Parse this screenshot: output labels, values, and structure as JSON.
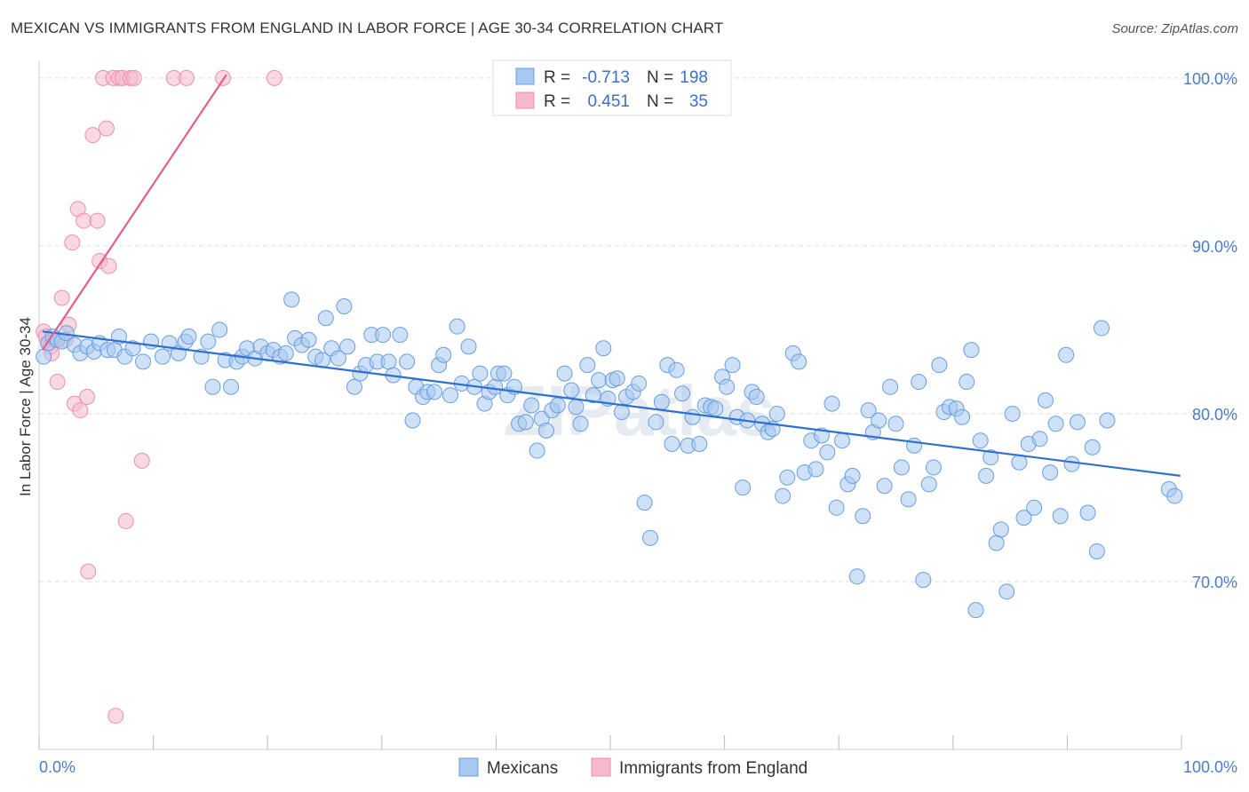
{
  "title": "MEXICAN VS IMMIGRANTS FROM ENGLAND IN LABOR FORCE | AGE 30-34 CORRELATION CHART",
  "source": "Source: ZipAtlas.com",
  "watermark": "ZIPatlas",
  "colors": {
    "blue_fill": "#a8c8f0",
    "blue_stroke": "#6a9ee0",
    "blue_line": "#2f6fd0",
    "pink_fill": "#f6b8cb",
    "pink_stroke": "#ee8fae",
    "pink_line": "#e0608a",
    "tick_label": "#4a7ccb",
    "grid": "#dddddd"
  },
  "legend": {
    "rows": [
      {
        "r_label": "R =",
        "r_value": "-0.713",
        "n_label": "N =",
        "n_value": "198"
      },
      {
        "r_label": "R =",
        "r_value": "0.451",
        "n_label": "N =",
        "n_value": "35"
      }
    ]
  },
  "chart_data": {
    "type": "scatter",
    "title": "MEXICAN VS IMMIGRANTS FROM ENGLAND IN LABOR FORCE | AGE 30-34 CORRELATION CHART",
    "xlabel": "",
    "ylabel": "In Labor Force | Age 30-34",
    "xlim": [
      0,
      100
    ],
    "ylim": [
      60,
      101
    ],
    "x_tick_labels": [
      "0.0%",
      "100.0%"
    ],
    "y_ticks": [
      70,
      80,
      90,
      100
    ],
    "y_tick_labels": [
      "70.0%",
      "80.0%",
      "90.0%",
      "100.0%"
    ],
    "grid": true,
    "legend_position": "top-center",
    "series": [
      {
        "name": "Mexicans",
        "r": -0.713,
        "n": 198,
        "trend": {
          "x": [
            0.3,
            99.9
          ],
          "y": [
            84.9,
            76.3
          ]
        },
        "points": [
          [
            0.4,
            83.4
          ],
          [
            0.8,
            84.2
          ],
          [
            1.2,
            84.6
          ],
          [
            1.6,
            84.4
          ],
          [
            2.0,
            84.3
          ],
          [
            2.4,
            84.8
          ],
          [
            3.1,
            84.1
          ],
          [
            3.6,
            83.6
          ],
          [
            4.2,
            84.0
          ],
          [
            4.8,
            83.7
          ],
          [
            5.3,
            84.2
          ],
          [
            6.0,
            83.8
          ],
          [
            6.6,
            83.8
          ],
          [
            7.0,
            84.6
          ],
          [
            7.5,
            83.4
          ],
          [
            8.2,
            83.9
          ],
          [
            9.1,
            83.1
          ],
          [
            9.8,
            84.3
          ],
          [
            10.8,
            83.4
          ],
          [
            11.4,
            84.2
          ],
          [
            12.2,
            83.6
          ],
          [
            12.8,
            84.3
          ],
          [
            13.1,
            84.6
          ],
          [
            14.2,
            83.4
          ],
          [
            14.8,
            84.3
          ],
          [
            15.2,
            81.6
          ],
          [
            15.8,
            85.0
          ],
          [
            16.3,
            83.2
          ],
          [
            16.8,
            81.6
          ],
          [
            17.3,
            83.1
          ],
          [
            17.8,
            83.4
          ],
          [
            18.2,
            83.9
          ],
          [
            18.9,
            83.3
          ],
          [
            19.4,
            84.0
          ],
          [
            20.0,
            83.6
          ],
          [
            20.5,
            83.8
          ],
          [
            21.1,
            83.4
          ],
          [
            21.6,
            83.6
          ],
          [
            22.1,
            86.8
          ],
          [
            22.4,
            84.5
          ],
          [
            23.0,
            84.1
          ],
          [
            23.6,
            84.4
          ],
          [
            24.2,
            83.4
          ],
          [
            24.8,
            83.2
          ],
          [
            25.1,
            85.7
          ],
          [
            25.6,
            83.9
          ],
          [
            26.2,
            83.3
          ],
          [
            26.7,
            86.4
          ],
          [
            27.0,
            84.0
          ],
          [
            27.6,
            81.6
          ],
          [
            28.1,
            82.4
          ],
          [
            28.6,
            82.9
          ],
          [
            29.1,
            84.7
          ],
          [
            29.6,
            83.1
          ],
          [
            30.1,
            84.7
          ],
          [
            30.6,
            83.1
          ],
          [
            31.0,
            82.3
          ],
          [
            31.6,
            84.7
          ],
          [
            32.2,
            83.1
          ],
          [
            32.7,
            79.6
          ],
          [
            33.0,
            81.6
          ],
          [
            33.6,
            81.0
          ],
          [
            34.0,
            81.3
          ],
          [
            34.6,
            81.3
          ],
          [
            35.0,
            82.9
          ],
          [
            35.4,
            83.5
          ],
          [
            36.0,
            81.1
          ],
          [
            36.6,
            85.2
          ],
          [
            37.0,
            81.8
          ],
          [
            37.6,
            84.0
          ],
          [
            38.1,
            81.6
          ],
          [
            38.6,
            82.4
          ],
          [
            39.0,
            80.6
          ],
          [
            39.4,
            81.3
          ],
          [
            39.9,
            81.6
          ],
          [
            40.2,
            82.4
          ],
          [
            40.7,
            82.4
          ],
          [
            41.0,
            81.1
          ],
          [
            41.6,
            81.6
          ],
          [
            42.0,
            79.4
          ],
          [
            42.6,
            79.5
          ],
          [
            43.1,
            80.5
          ],
          [
            43.6,
            77.8
          ],
          [
            44.0,
            79.7
          ],
          [
            44.4,
            79.0
          ],
          [
            44.9,
            80.2
          ],
          [
            45.4,
            80.5
          ],
          [
            46.0,
            82.4
          ],
          [
            46.6,
            81.4
          ],
          [
            47.0,
            80.4
          ],
          [
            47.4,
            79.4
          ],
          [
            48.0,
            82.9
          ],
          [
            48.5,
            81.1
          ],
          [
            49.0,
            82.0
          ],
          [
            49.4,
            83.9
          ],
          [
            49.8,
            80.9
          ],
          [
            50.2,
            82.0
          ],
          [
            50.6,
            82.1
          ],
          [
            51.0,
            80.1
          ],
          [
            51.4,
            81.0
          ],
          [
            52.0,
            81.3
          ],
          [
            52.5,
            81.8
          ],
          [
            53.0,
            74.7
          ],
          [
            53.5,
            72.6
          ],
          [
            54.0,
            79.5
          ],
          [
            54.5,
            80.7
          ],
          [
            55.0,
            82.9
          ],
          [
            55.4,
            78.2
          ],
          [
            55.8,
            82.6
          ],
          [
            56.3,
            81.2
          ],
          [
            56.8,
            78.1
          ],
          [
            57.2,
            79.8
          ],
          [
            57.8,
            78.2
          ],
          [
            58.3,
            80.5
          ],
          [
            58.8,
            80.4
          ],
          [
            59.2,
            80.3
          ],
          [
            59.8,
            82.2
          ],
          [
            60.2,
            81.6
          ],
          [
            60.7,
            82.9
          ],
          [
            61.1,
            79.8
          ],
          [
            61.6,
            75.6
          ],
          [
            62.0,
            79.6
          ],
          [
            62.4,
            81.3
          ],
          [
            62.8,
            81.0
          ],
          [
            63.3,
            79.4
          ],
          [
            63.8,
            78.9
          ],
          [
            64.2,
            79.1
          ],
          [
            64.6,
            80.0
          ],
          [
            65.1,
            75.1
          ],
          [
            65.5,
            76.2
          ],
          [
            66.0,
            83.6
          ],
          [
            66.5,
            83.1
          ],
          [
            67.0,
            76.5
          ],
          [
            67.6,
            78.4
          ],
          [
            68.0,
            76.7
          ],
          [
            68.5,
            78.7
          ],
          [
            69.0,
            77.7
          ],
          [
            69.4,
            80.6
          ],
          [
            69.8,
            74.4
          ],
          [
            70.3,
            78.4
          ],
          [
            70.8,
            75.8
          ],
          [
            71.2,
            76.3
          ],
          [
            71.6,
            70.3
          ],
          [
            72.1,
            73.9
          ],
          [
            72.6,
            80.2
          ],
          [
            73.0,
            78.9
          ],
          [
            73.5,
            79.6
          ],
          [
            74.0,
            75.7
          ],
          [
            74.5,
            81.6
          ],
          [
            75.0,
            79.4
          ],
          [
            75.5,
            76.8
          ],
          [
            76.1,
            74.9
          ],
          [
            76.6,
            78.1
          ],
          [
            77.0,
            81.9
          ],
          [
            77.4,
            70.1
          ],
          [
            77.9,
            75.8
          ],
          [
            78.3,
            76.8
          ],
          [
            78.8,
            82.9
          ],
          [
            79.2,
            80.1
          ],
          [
            79.7,
            80.4
          ],
          [
            80.3,
            80.3
          ],
          [
            80.8,
            79.8
          ],
          [
            81.2,
            81.9
          ],
          [
            81.6,
            83.8
          ],
          [
            82.0,
            68.3
          ],
          [
            82.4,
            78.4
          ],
          [
            82.9,
            76.3
          ],
          [
            83.3,
            77.4
          ],
          [
            83.8,
            72.3
          ],
          [
            84.2,
            73.1
          ],
          [
            84.7,
            69.4
          ],
          [
            85.2,
            80.0
          ],
          [
            85.8,
            77.1
          ],
          [
            86.2,
            73.8
          ],
          [
            86.6,
            78.2
          ],
          [
            87.1,
            74.4
          ],
          [
            87.6,
            78.5
          ],
          [
            88.1,
            80.8
          ],
          [
            88.5,
            76.5
          ],
          [
            89.0,
            79.4
          ],
          [
            89.4,
            73.9
          ],
          [
            89.9,
            83.5
          ],
          [
            90.4,
            77.0
          ],
          [
            90.9,
            79.5
          ],
          [
            91.8,
            74.1
          ],
          [
            92.2,
            78.0
          ],
          [
            92.6,
            71.8
          ],
          [
            93.0,
            85.1
          ],
          [
            93.5,
            79.6
          ],
          [
            98.9,
            75.5
          ],
          [
            99.4,
            75.1
          ]
        ]
      },
      {
        "name": "Immigrants from England",
        "r": 0.451,
        "n": 35,
        "trend": {
          "x": [
            0.3,
            16.4
          ],
          "y": [
            83.8,
            100.2
          ]
        },
        "points": [
          [
            0.4,
            84.9
          ],
          [
            0.6,
            84.6
          ],
          [
            0.8,
            84.2
          ],
          [
            1.0,
            84.0
          ],
          [
            1.1,
            83.6
          ],
          [
            1.2,
            84.4
          ],
          [
            1.6,
            81.9
          ],
          [
            2.0,
            86.9
          ],
          [
            2.3,
            84.4
          ],
          [
            2.6,
            85.3
          ],
          [
            2.9,
            90.2
          ],
          [
            3.1,
            80.6
          ],
          [
            3.4,
            92.2
          ],
          [
            3.6,
            80.2
          ],
          [
            3.9,
            91.5
          ],
          [
            4.2,
            81.0
          ],
          [
            4.3,
            70.6
          ],
          [
            4.7,
            96.6
          ],
          [
            5.1,
            91.5
          ],
          [
            5.3,
            89.1
          ],
          [
            5.6,
            100.0
          ],
          [
            5.9,
            97.0
          ],
          [
            6.1,
            88.8
          ],
          [
            6.5,
            100.0
          ],
          [
            6.7,
            62.0
          ],
          [
            7.0,
            100.0
          ],
          [
            7.3,
            100.0
          ],
          [
            7.6,
            73.6
          ],
          [
            8.0,
            100.0
          ],
          [
            8.3,
            100.0
          ],
          [
            9.0,
            77.2
          ],
          [
            11.8,
            100.0
          ],
          [
            12.9,
            100.0
          ],
          [
            16.1,
            100.0
          ],
          [
            20.6,
            100.0
          ]
        ]
      }
    ]
  },
  "bottom_legend": [
    {
      "label": "Mexicans"
    },
    {
      "label": "Immigrants from England"
    }
  ]
}
